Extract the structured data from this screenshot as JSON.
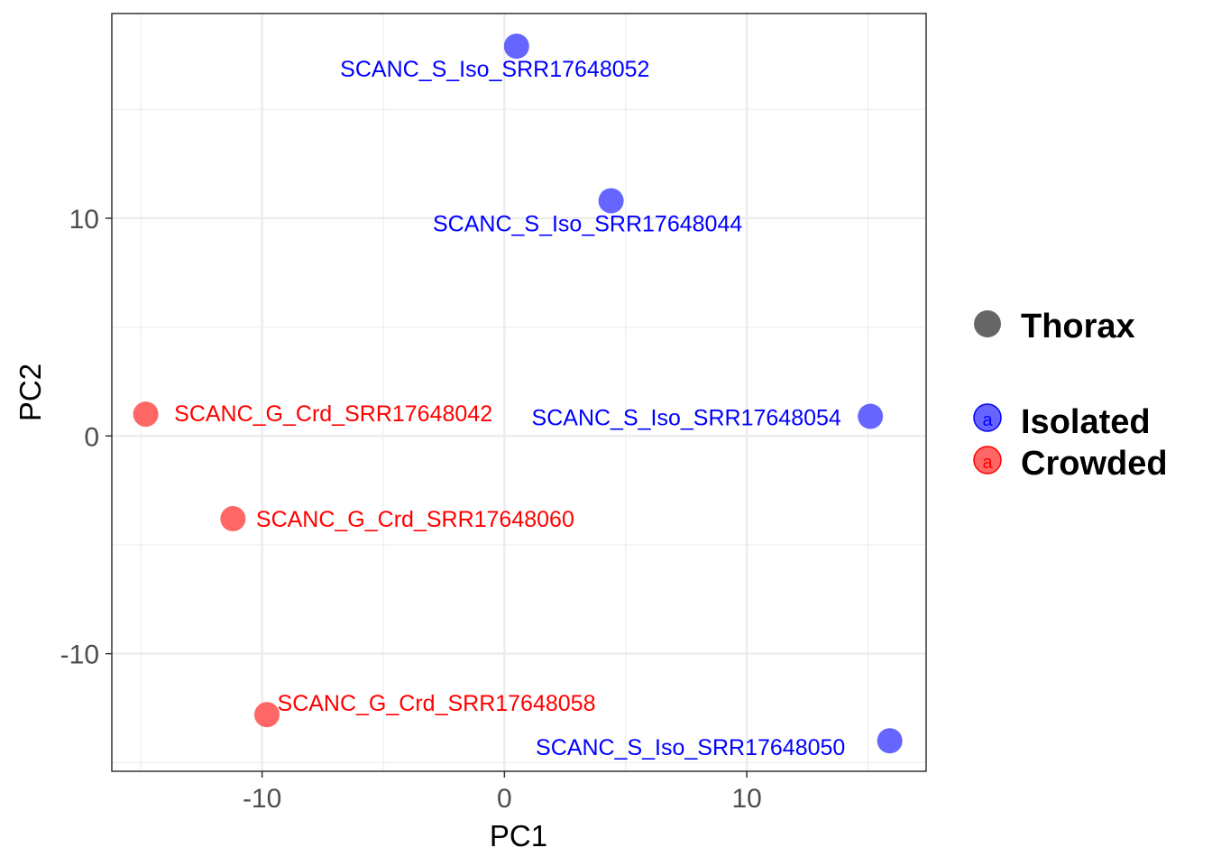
{
  "chart_data": {
    "type": "scatter",
    "title": "",
    "xlabel": "PC1",
    "ylabel": "PC2",
    "xlim": [
      -16.2,
      17.4
    ],
    "ylim": [
      -15.4,
      19.4
    ],
    "xticks": [
      -10,
      0,
      10
    ],
    "yticks": [
      -10,
      0,
      10
    ],
    "grid": true,
    "series": [
      {
        "name": "Isolated",
        "color": "#0000ff",
        "point_color": "#6666ff",
        "points": [
          {
            "x": 0.5,
            "y": 17.9,
            "label": "SCANC_S_Iso_SRR17648052"
          },
          {
            "x": 4.4,
            "y": 10.8,
            "label": "SCANC_S_Iso_SRR17648044"
          },
          {
            "x": 15.1,
            "y": 0.9,
            "label": "SCANC_S_Iso_SRR17648054"
          },
          {
            "x": 15.9,
            "y": -14.0,
            "label": "SCANC_S_Iso_SRR17648050"
          }
        ]
      },
      {
        "name": "Crowded",
        "color": "#ff0000",
        "point_color": "#ff6666",
        "points": [
          {
            "x": -14.8,
            "y": 1.0,
            "label": "SCANC_G_Crd_SRR17648042"
          },
          {
            "x": -11.2,
            "y": -3.8,
            "label": "SCANC_G_Crd_SRR17648060"
          },
          {
            "x": -9.8,
            "y": -12.8,
            "label": "SCANC_G_Crd_SRR17648058"
          }
        ]
      }
    ],
    "legend": {
      "placement": "right",
      "shape_title": "Thorax",
      "shape_color": "#666666",
      "key_glyph": "a",
      "entries": [
        "Isolated",
        "Crowded"
      ]
    }
  }
}
